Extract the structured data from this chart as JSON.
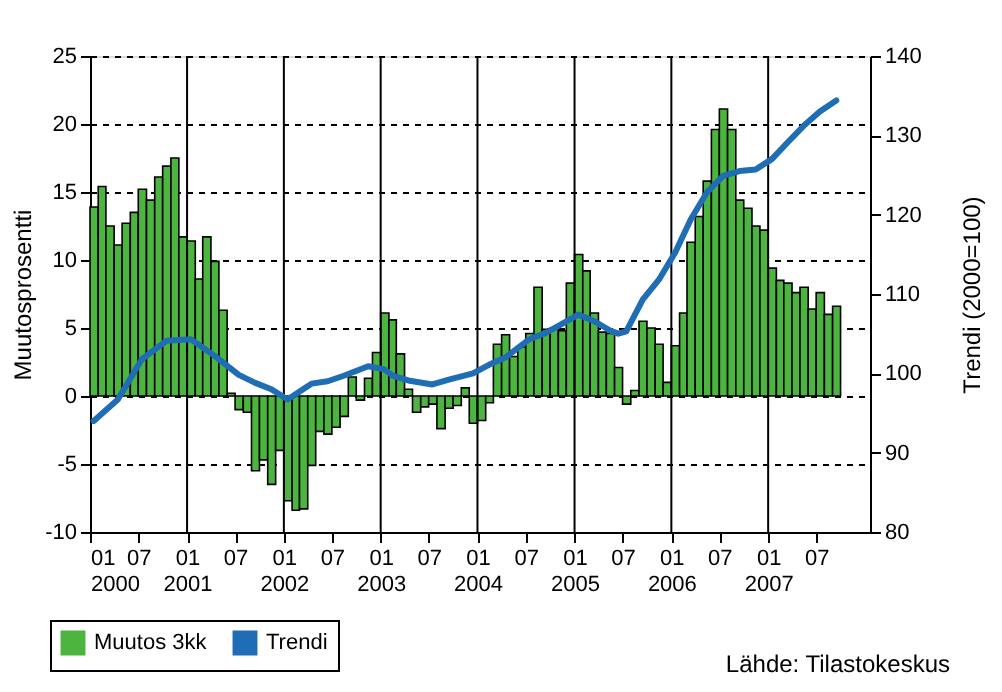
{
  "chart_data": {
    "type": "bar",
    "ylabel": "Muutosprosentti",
    "y2label": "Trendi (2000=100)",
    "xlim": [
      "2000-01",
      "2008-01-20"
    ],
    "ylim": [
      -10,
      25
    ],
    "yticks": [
      -10,
      -5,
      0,
      5,
      10,
      15,
      20,
      25
    ],
    "y2lim": [
      80,
      140
    ],
    "y2ticks": [
      80,
      90,
      100,
      110,
      120,
      130,
      140
    ],
    "xticks": [
      {
        "value": "2000-01",
        "label": "01 2000"
      },
      {
        "value": "2000-07",
        "label": "07"
      },
      {
        "value": "2001-01",
        "label": "01 2001"
      },
      {
        "value": "2001-07",
        "label": "07"
      },
      {
        "value": "2002-01",
        "label": "01 2002"
      },
      {
        "value": "2002-07",
        "label": "07"
      },
      {
        "value": "2003-01",
        "label": "01 2003"
      },
      {
        "value": "2003-07",
        "label": "07"
      },
      {
        "value": "2004-01",
        "label": "01 2004"
      },
      {
        "value": "2004-07",
        "label": "07"
      },
      {
        "value": "2005-01",
        "label": "01 2005"
      },
      {
        "value": "2005-07",
        "label": "07"
      },
      {
        "value": "2006-01",
        "label": "01 2006"
      },
      {
        "value": "2006-07",
        "label": "07"
      },
      {
        "value": "2007-01",
        "label": "01 2007"
      },
      {
        "value": "2007-07",
        "label": "07"
      }
    ],
    "grid": "y",
    "legend": "bottom left",
    "annotations": [
      "Lähde: Tilastokeskus"
    ],
    "ref_lines": [
      {
        "axis": "x",
        "value": "2001-01",
        "label": null,
        "color": "#000000"
      },
      {
        "axis": "x",
        "value": "2002-01",
        "label": null,
        "color": "#000000"
      },
      {
        "axis": "x",
        "value": "2003-01",
        "label": null,
        "color": "#000000"
      },
      {
        "axis": "x",
        "value": "2004-01",
        "label": null,
        "color": "#000000"
      },
      {
        "axis": "x",
        "value": "2005-01",
        "label": null,
        "color": "#000000"
      },
      {
        "axis": "x",
        "value": "2006-01",
        "label": null,
        "color": "#000000"
      },
      {
        "axis": "x",
        "value": "2007-01",
        "label": null,
        "color": "#000000"
      }
    ],
    "series": [
      {
        "name": "Muutos 3kk",
        "color": "#4cb53f",
        "x": [
          "2000-01",
          "2000-02",
          "2000-03",
          "2000-04",
          "2000-05",
          "2000-06",
          "2000-07",
          "2000-08",
          "2000-09",
          "2000-10",
          "2000-11",
          "2000-12",
          "2001-01",
          "2001-02",
          "2001-03",
          "2001-04",
          "2001-05",
          "2001-06",
          "2001-07",
          "2001-08",
          "2001-09",
          "2001-10",
          "2001-11",
          "2001-12",
          "2002-01",
          "2002-02",
          "2002-03",
          "2002-04",
          "2002-05",
          "2002-06",
          "2002-07",
          "2002-08",
          "2002-09",
          "2002-10",
          "2002-11",
          "2002-12",
          "2003-01",
          "2003-02",
          "2003-03",
          "2003-04",
          "2003-05",
          "2003-06",
          "2003-07",
          "2003-08",
          "2003-09",
          "2003-10",
          "2003-11",
          "2003-12",
          "2004-01",
          "2004-02",
          "2004-03",
          "2004-04",
          "2004-05",
          "2004-06",
          "2004-07",
          "2004-08",
          "2004-09",
          "2004-10",
          "2004-11",
          "2004-12",
          "2005-01",
          "2005-02",
          "2005-03",
          "2005-04",
          "2005-05",
          "2005-06",
          "2005-07",
          "2005-08",
          "2005-09",
          "2005-10",
          "2005-11",
          "2005-12",
          "2006-01",
          "2006-02",
          "2006-03",
          "2006-04",
          "2006-05",
          "2006-06",
          "2006-07",
          "2006-08",
          "2006-09",
          "2006-10",
          "2006-11",
          "2006-12",
          "2007-01",
          "2007-02",
          "2007-03",
          "2007-04",
          "2007-05",
          "2007-06",
          "2007-07",
          "2007-08",
          "2007-09"
        ],
        "values": [
          13.9,
          15.4,
          12.5,
          11.1,
          12.7,
          13.5,
          15.2,
          14.4,
          16.1,
          16.9,
          17.5,
          11.7,
          11.4,
          8.6,
          11.7,
          9.9,
          6.3,
          0.2,
          -1.0,
          -1.2,
          -5.5,
          -4.7,
          -6.5,
          -4.0,
          -7.7,
          -8.4,
          -8.3,
          -5.1,
          -2.6,
          -2.8,
          -2.3,
          -1.5,
          1.4,
          -0.3,
          1.3,
          3.2,
          6.1,
          5.6,
          3.1,
          0.5,
          -1.2,
          -0.8,
          -0.6,
          -2.4,
          -0.9,
          -0.7,
          0.6,
          -2.0,
          -1.8,
          -0.5,
          3.8,
          4.5,
          2.9,
          3.6,
          4.6,
          8.0,
          4.9,
          5.0,
          4.8,
          8.3,
          10.4,
          9.2,
          6.1,
          4.7,
          4.6,
          2.1,
          -0.6,
          0.4,
          5.5,
          5.0,
          3.8,
          1.0,
          3.7,
          6.1,
          11.3,
          13.2,
          15.8,
          19.6,
          21.1,
          19.6,
          14.4,
          13.8,
          12.5,
          12.2,
          9.4,
          8.5,
          8.3,
          7.6,
          8.0,
          6.4,
          7.6,
          6.0,
          6.6
        ]
      },
      {
        "name": "Trendi",
        "type": "line",
        "axis": "y2",
        "color": "#1f6db5",
        "line_style": "solid",
        "marker": "none",
        "x": [
          "2000-01-15",
          "2000-04-15",
          "2000-07-15",
          "2000-10-15",
          "2001-01-15",
          "2001-04-15",
          "2001-07-15",
          "2001-09-15",
          "2001-11-15",
          "2002-01-15",
          "2002-04-15",
          "2002-06-15",
          "2002-08-15",
          "2002-11-15",
          "2003-01-15",
          "2003-02-15",
          "2003-04-15",
          "2003-07-15",
          "2003-09-15",
          "2003-12-15",
          "2004-02-15",
          "2004-04-15",
          "2004-07-15",
          "2004-09-15",
          "2004-12-15",
          "2005-01-15",
          "2005-03-15",
          "2005-05-15",
          "2005-06-15",
          "2005-07-15",
          "2005-09-15",
          "2005-11-15",
          "2006-01-15",
          "2006-03-15",
          "2006-05-15",
          "2006-07-15",
          "2006-09-15",
          "2006-11-15",
          "2007-01-15",
          "2007-03-15",
          "2007-05-15",
          "2007-07-15",
          "2007-09-15"
        ],
        "values": [
          94.0,
          96.7,
          101.8,
          104.1,
          104.3,
          102.2,
          99.8,
          98.8,
          98.0,
          96.7,
          98.7,
          99.0,
          99.7,
          100.9,
          100.5,
          99.7,
          99.1,
          98.6,
          99.2,
          100.0,
          101.1,
          102.0,
          104.3,
          105.1,
          106.8,
          107.4,
          106.6,
          105.4,
          105.0,
          105.3,
          109.3,
          111.8,
          115.2,
          119.4,
          122.8,
          124.9,
          125.5,
          125.7,
          127.0,
          129.1,
          131.2,
          133.0,
          134.4
        ]
      }
    ]
  }
}
